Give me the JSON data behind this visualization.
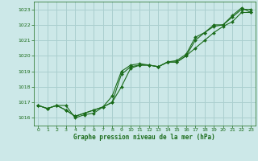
{
  "title": "Graphe pression niveau de la mer (hPa)",
  "bg_color": "#cce8e8",
  "grid_color": "#aacfcf",
  "line_color": "#1a6b1a",
  "marker_color": "#1a6b1a",
  "tick_color": "#1a6b1a",
  "title_color": "#1a6b1a",
  "xlim": [
    -0.5,
    23.5
  ],
  "ylim": [
    1015.5,
    1023.5
  ],
  "yticks": [
    1016,
    1017,
    1018,
    1019,
    1020,
    1021,
    1022,
    1023
  ],
  "xticks": [
    0,
    1,
    2,
    3,
    4,
    5,
    6,
    7,
    8,
    9,
    10,
    11,
    12,
    13,
    14,
    15,
    16,
    17,
    18,
    19,
    20,
    21,
    22,
    23
  ],
  "series1_x": [
    0,
    1,
    2,
    3,
    4,
    5,
    6,
    7,
    8,
    9,
    10,
    11,
    12,
    13,
    14,
    15,
    16,
    17,
    18,
    19,
    20,
    21,
    22,
    23
  ],
  "series1_y": [
    1016.8,
    1016.6,
    1016.8,
    1016.8,
    1016.0,
    1016.2,
    1016.3,
    1016.7,
    1017.0,
    1018.0,
    1019.2,
    1019.4,
    1019.4,
    1019.3,
    1019.6,
    1019.6,
    1020.0,
    1020.5,
    1021.0,
    1021.5,
    1021.9,
    1022.2,
    1022.8,
    1022.8
  ],
  "series2_x": [
    0,
    1,
    2,
    3,
    4,
    5,
    6,
    7,
    8,
    9,
    10,
    11,
    12,
    13,
    14,
    15,
    16,
    17,
    18,
    19,
    20,
    21,
    22,
    23
  ],
  "series2_y": [
    1016.8,
    1016.6,
    1016.8,
    1016.5,
    1016.1,
    1016.3,
    1016.5,
    1016.7,
    1017.0,
    1018.8,
    1019.3,
    1019.4,
    1019.4,
    1019.3,
    1019.6,
    1019.6,
    1020.0,
    1021.0,
    1021.5,
    1021.9,
    1022.0,
    1022.5,
    1023.0,
    1023.0
  ],
  "series3_x": [
    0,
    1,
    2,
    3,
    4,
    5,
    6,
    7,
    8,
    9,
    10,
    11,
    12,
    13,
    14,
    15,
    16,
    17,
    18,
    19,
    20,
    21,
    22,
    23
  ],
  "series3_y": [
    1016.8,
    1016.6,
    1016.8,
    1016.5,
    1016.1,
    1016.3,
    1016.5,
    1016.7,
    1017.4,
    1019.0,
    1019.4,
    1019.5,
    1019.4,
    1019.3,
    1019.6,
    1019.7,
    1020.1,
    1021.2,
    1021.5,
    1022.0,
    1022.0,
    1022.6,
    1023.1,
    1022.8
  ]
}
